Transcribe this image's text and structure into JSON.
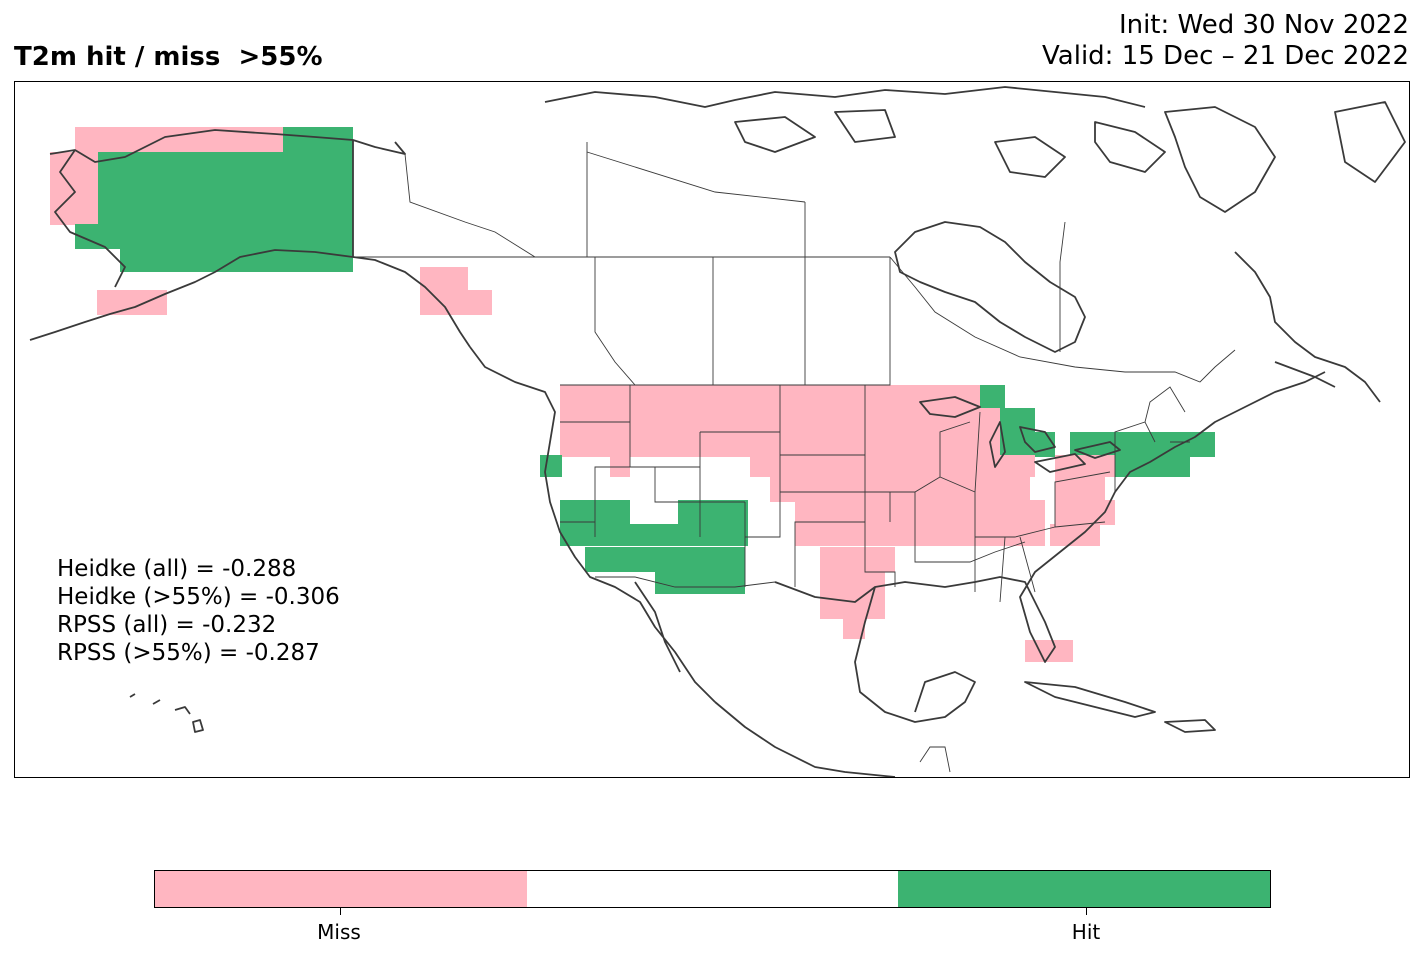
{
  "header": {
    "title": "T2m hit / miss  >55%",
    "init": "Init: Wed 30 Nov 2022",
    "valid": "Valid: 15 Dec – 21 Dec 2022"
  },
  "scores": [
    "Heidke (all) = -0.288",
    "Heidke (>55%) = -0.306",
    "RPSS (all) = -0.232",
    "RPSS (>55%) = -0.287"
  ],
  "colors": {
    "miss": "#ffb6c1",
    "neutral": "#ffffff",
    "hit": "#3cb371",
    "coast": "#3a3a3a"
  },
  "colorbar": {
    "labels": [
      "Miss",
      "Hit"
    ]
  }
}
